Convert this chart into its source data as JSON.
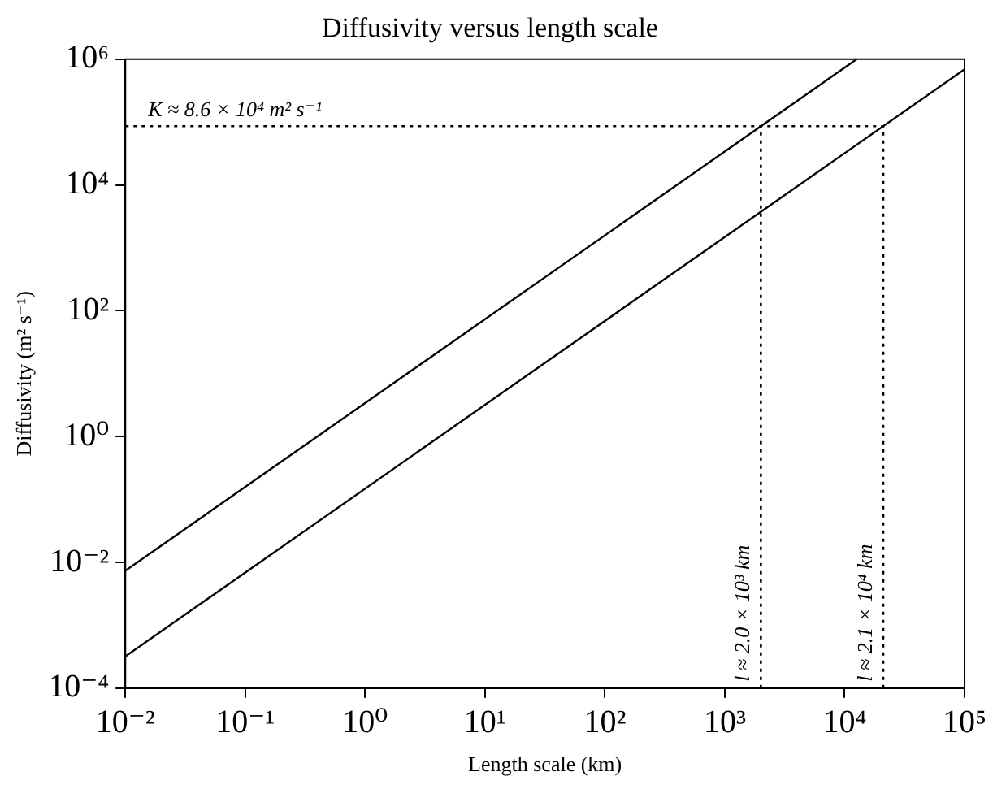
{
  "chart_data": {
    "type": "line",
    "title": "Diffusivity versus length scale",
    "xlabel": "Length scale (km)",
    "ylabel": "Diffusivity (m² s⁻¹)",
    "log": "xy",
    "grid": false,
    "legend": false,
    "marker": "none",
    "line_style": "solid",
    "xlim": [
      0.01,
      100000
    ],
    "ylim": [
      0.0001,
      1000000
    ],
    "xticks": [
      {
        "value": 0.01,
        "label": "10⁻²"
      },
      {
        "value": 0.1,
        "label": "10⁻¹"
      },
      {
        "value": 1,
        "label": "10⁰"
      },
      {
        "value": 10,
        "label": "10¹"
      },
      {
        "value": 100,
        "label": "10²"
      },
      {
        "value": 1000,
        "label": "10³"
      },
      {
        "value": 10000,
        "label": "10⁴"
      },
      {
        "value": 100000,
        "label": "10⁵"
      }
    ],
    "yticks": [
      {
        "value": 0.0001,
        "label": "10⁻⁴"
      },
      {
        "value": 0.01,
        "label": "10⁻²"
      },
      {
        "value": 1,
        "label": "10⁰"
      },
      {
        "value": 100,
        "label": "10²"
      },
      {
        "value": 10000,
        "label": "10⁴"
      },
      {
        "value": 1000000,
        "label": "10⁶"
      }
    ],
    "series": [
      {
        "color": "#000000",
        "x": [
          0.01,
          12600
        ],
        "values": [
          0.00735,
          1000000
        ]
      },
      {
        "color": "#000000",
        "x": [
          0.01,
          100000
        ],
        "values": [
          0.00032,
          690000
        ]
      }
    ],
    "ref_lines": [
      {
        "axis": "y",
        "value": 86000,
        "label": "K ≈ 8.6 × 10⁴ m² s⁻¹",
        "line_style": "dotted",
        "color": "#000000"
      },
      {
        "axis": "x",
        "value": 2000,
        "label": "l ≈ 2.0 × 10³ km",
        "line_style": "dotted",
        "color": "#000000"
      },
      {
        "axis": "x",
        "value": 21000,
        "label": "l ≈ 2.1 × 10⁴ km",
        "line_style": "dotted",
        "color": "#000000"
      }
    ]
  }
}
